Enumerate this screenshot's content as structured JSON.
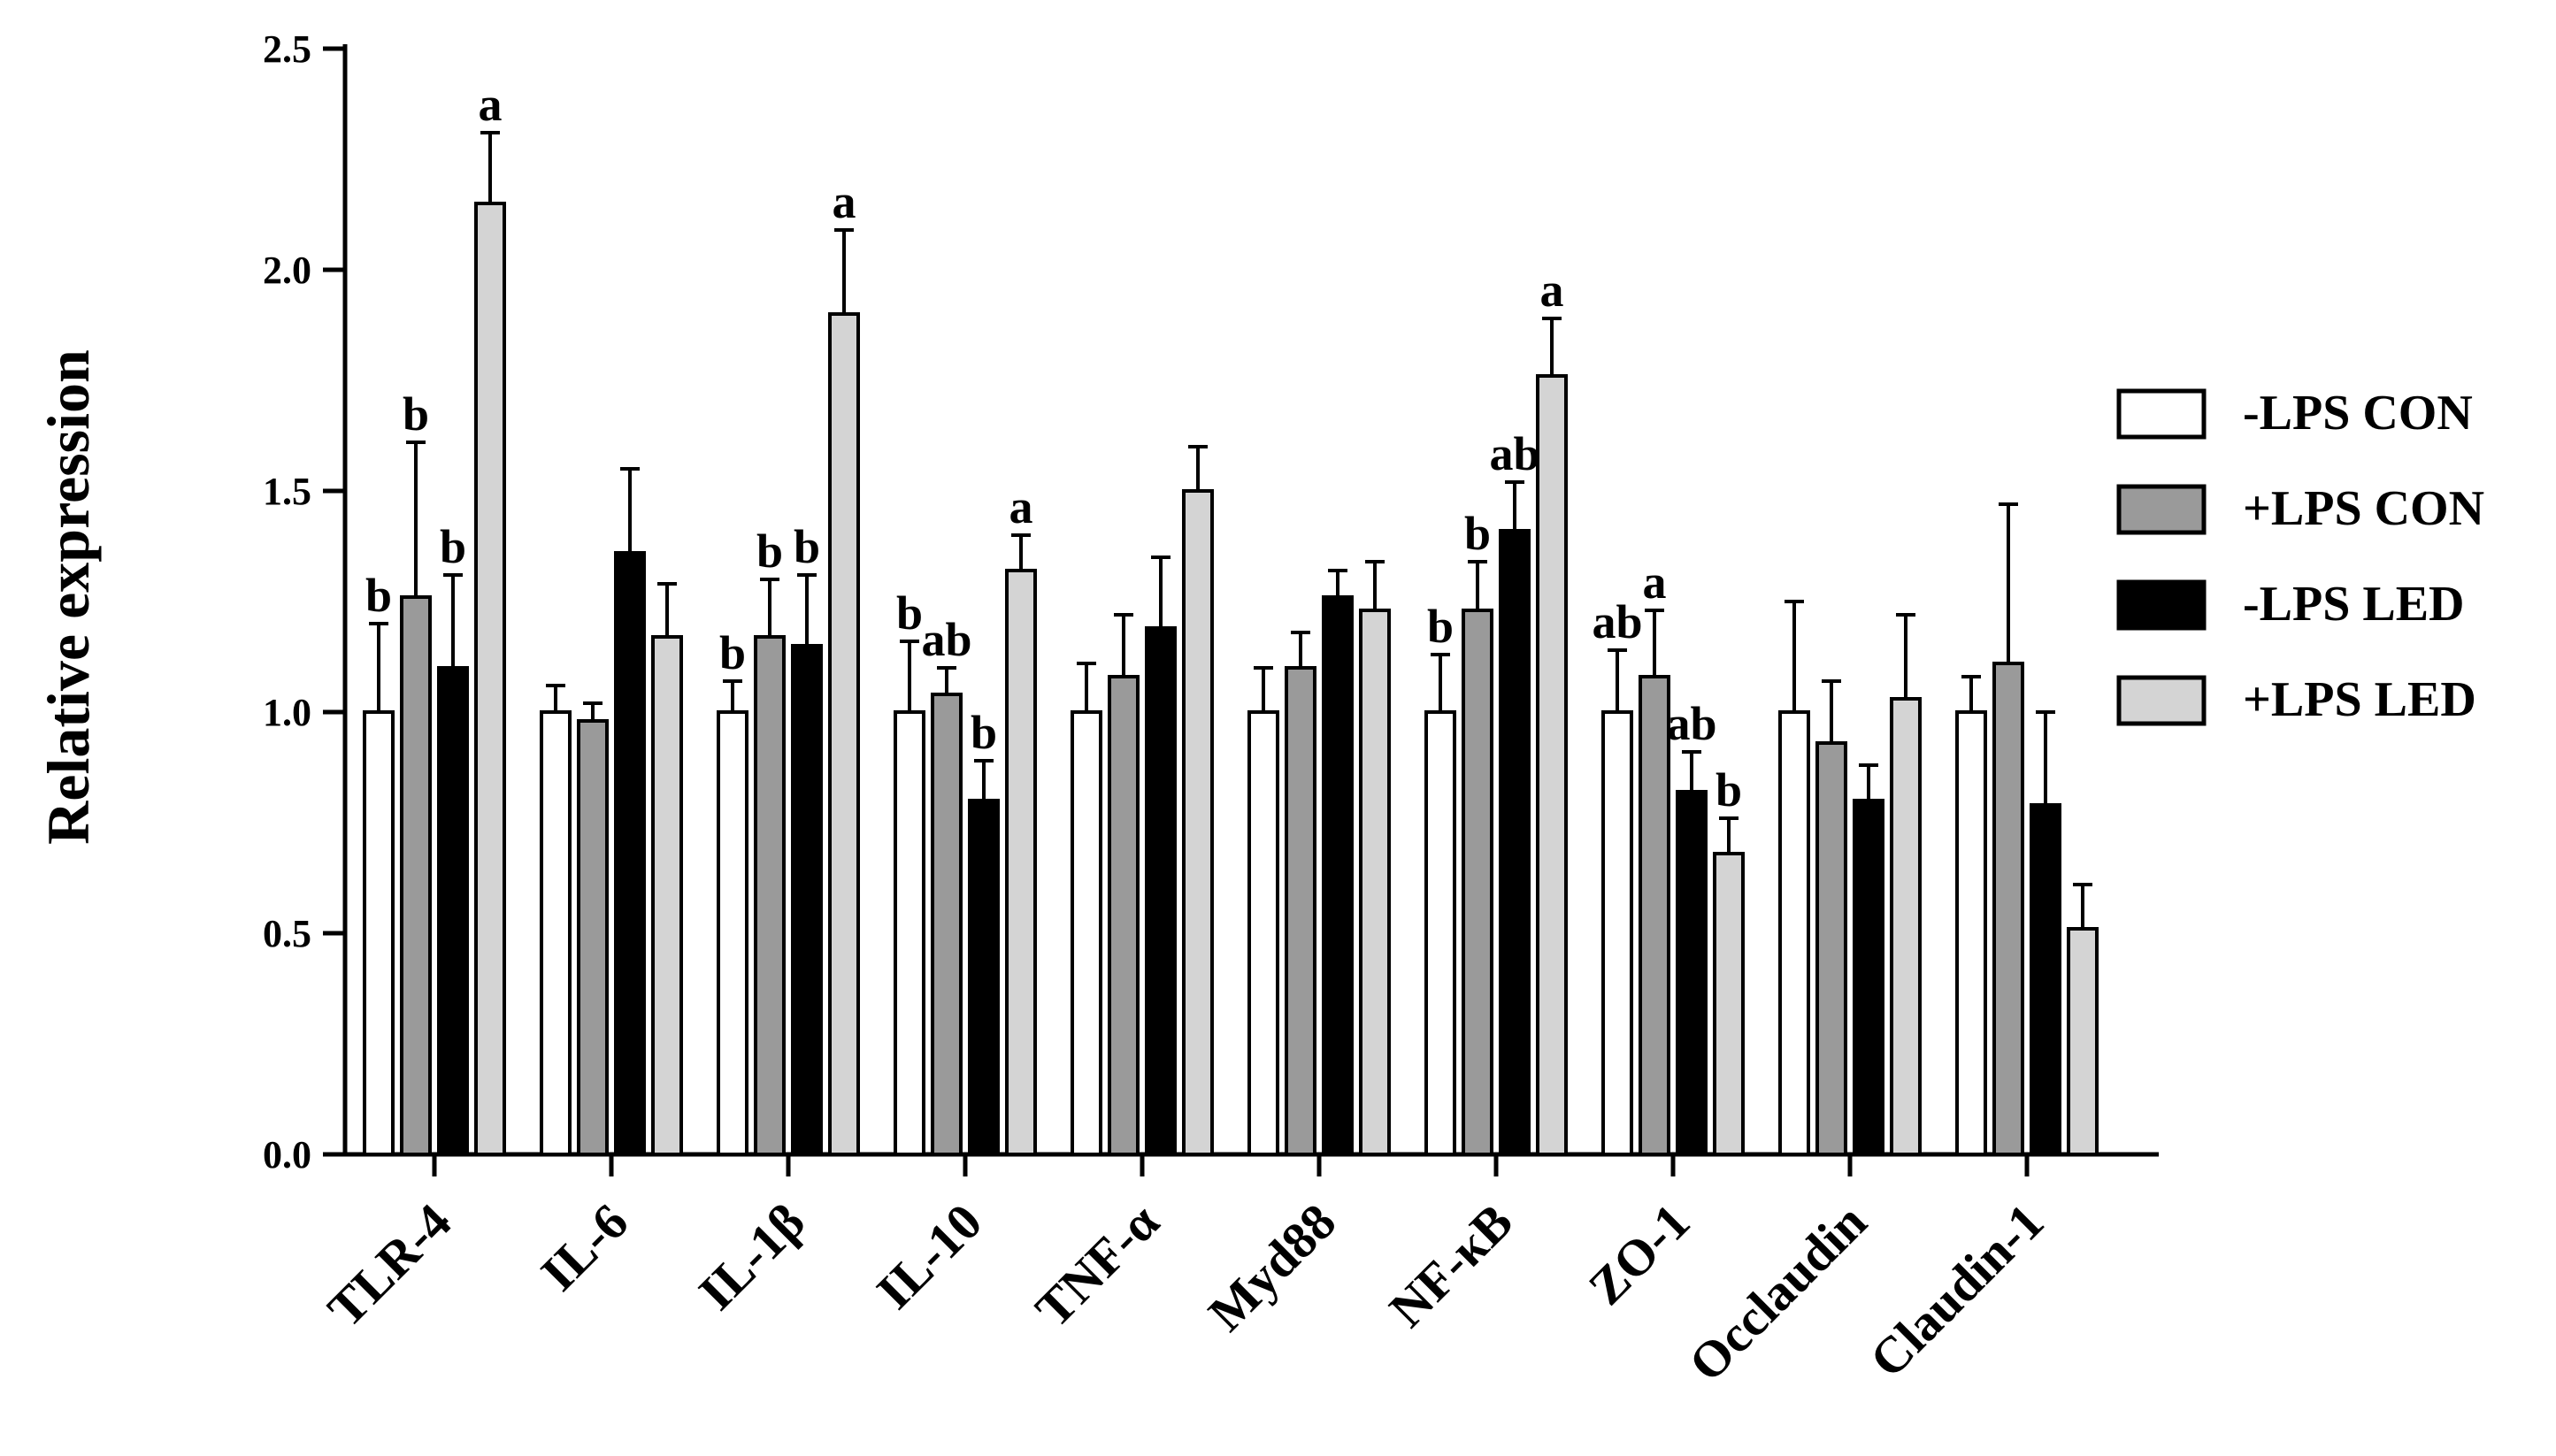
{
  "chart_data": {
    "type": "bar",
    "title": "",
    "xlabel": "",
    "ylabel": "Relative expression",
    "ylim": [
      0,
      2.5
    ],
    "yticks": [
      "0.0",
      "0.5",
      "1.0",
      "1.5",
      "2.0",
      "2.5"
    ],
    "grid": false,
    "legend_position": "right",
    "categories": [
      "TLR-4",
      "IL-6",
      "IL-1β",
      "IL-10",
      "TNF-α",
      "Myd88",
      "NF-κB",
      "ZO-1",
      "Occlaudin",
      "Claudin-1"
    ],
    "series": [
      {
        "name": "-LPS CON",
        "color": "#ffffff",
        "values": [
          1.0,
          1.0,
          1.0,
          1.0,
          1.0,
          1.0,
          1.0,
          1.0,
          1.0,
          1.0
        ],
        "errors": [
          0.2,
          0.06,
          0.07,
          0.16,
          0.11,
          0.1,
          0.13,
          0.14,
          0.25,
          0.08
        ],
        "labels": [
          "b",
          "",
          "b",
          "b",
          "",
          "",
          "b",
          "ab",
          "",
          ""
        ]
      },
      {
        "name": "+LPS CON",
        "color": "#9a9a9a",
        "values": [
          1.26,
          0.98,
          1.17,
          1.04,
          1.08,
          1.1,
          1.23,
          1.08,
          0.93,
          1.11
        ],
        "errors": [
          0.35,
          0.04,
          0.13,
          0.06,
          0.14,
          0.08,
          0.11,
          0.15,
          0.14,
          0.36
        ],
        "labels": [
          "b",
          "",
          "b",
          "ab",
          "",
          "",
          "b",
          "a",
          "",
          ""
        ]
      },
      {
        "name": "-LPS LED",
        "color": "#000000",
        "values": [
          1.1,
          1.36,
          1.15,
          0.8,
          1.19,
          1.26,
          1.41,
          0.82,
          0.8,
          0.79
        ],
        "errors": [
          0.21,
          0.19,
          0.16,
          0.09,
          0.16,
          0.06,
          0.11,
          0.09,
          0.08,
          0.21
        ],
        "labels": [
          "b",
          "",
          "b",
          "b",
          "",
          "",
          "ab",
          "ab",
          "",
          ""
        ]
      },
      {
        "name": "+LPS LED",
        "color": "#d4d4d4",
        "values": [
          2.15,
          1.17,
          1.9,
          1.32,
          1.5,
          1.23,
          1.76,
          0.68,
          1.03,
          0.51
        ],
        "errors": [
          0.16,
          0.12,
          0.19,
          0.08,
          0.1,
          0.11,
          0.13,
          0.08,
          0.19,
          0.1
        ],
        "labels": [
          "a",
          "",
          "a",
          "a",
          "",
          "",
          "a",
          "b",
          "",
          ""
        ]
      }
    ]
  }
}
